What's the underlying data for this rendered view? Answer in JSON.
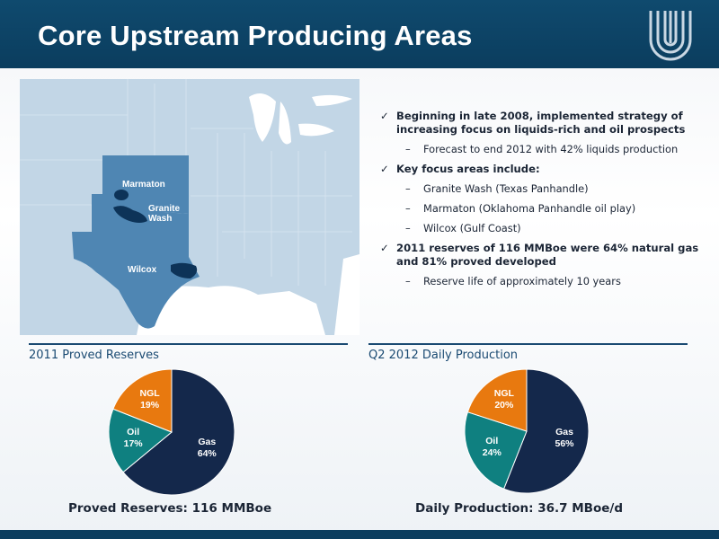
{
  "title": "Core Upstream Producing Areas",
  "map": {
    "labels": [
      "Marmaton",
      "Granite\nWash",
      "Wilcox"
    ]
  },
  "bullets": [
    {
      "level": 1,
      "text": "Beginning in late 2008, implemented strategy of increasing focus on liquids-rich and oil prospects"
    },
    {
      "level": 2,
      "text": "Forecast to end 2012 with 42% liquids production"
    },
    {
      "level": 1,
      "text": "Key focus areas include:"
    },
    {
      "level": 2,
      "text": "Granite Wash (Texas Panhandle)"
    },
    {
      "level": 2,
      "text": "Marmaton (Oklahoma Panhandle oil play)"
    },
    {
      "level": 2,
      "text": "Wilcox (Gulf Coast)"
    },
    {
      "level": 1,
      "text": "2011 reserves of 116 MMBoe were 64% natural gas and 81% proved developed"
    },
    {
      "level": 2,
      "text": "Reserve life of approximately 10 years"
    }
  ],
  "chart_data": [
    {
      "type": "pie",
      "title": "2011 Proved Reserves",
      "caption": "Proved Reserves: 116 MMBoe",
      "slices": [
        {
          "label": "Gas",
          "value": 64,
          "color": "#14284b"
        },
        {
          "label": "Oil",
          "value": 17,
          "color": "#0f8080"
        },
        {
          "label": "NGL",
          "value": 19,
          "color": "#e8790f"
        }
      ]
    },
    {
      "type": "pie",
      "title": "Q2 2012 Daily Production",
      "caption": "Daily Production: 36.7 MBoe/d",
      "slices": [
        {
          "label": "Gas",
          "value": 56,
          "color": "#14284b"
        },
        {
          "label": "Oil",
          "value": 24,
          "color": "#0f8080"
        },
        {
          "label": "NGL",
          "value": 20,
          "color": "#e8790f"
        }
      ]
    }
  ]
}
